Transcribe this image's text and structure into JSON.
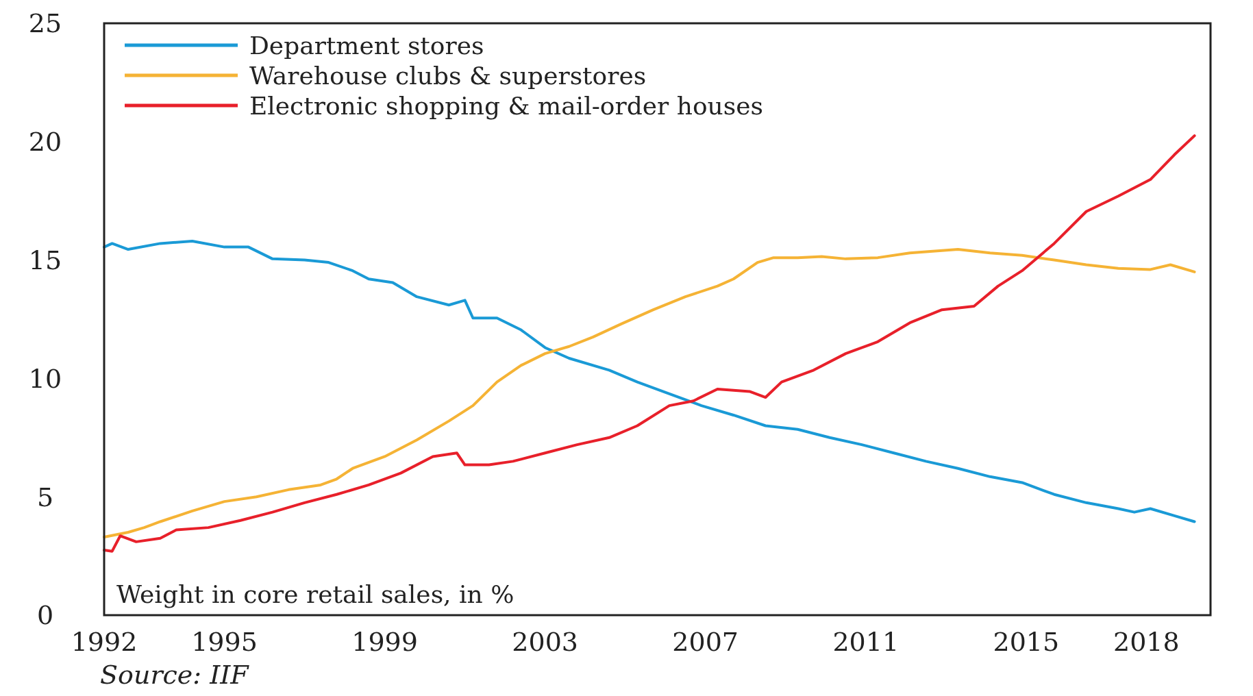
{
  "chart_data": {
    "type": "line",
    "ylabel": "Weight in core retail sales, in %",
    "annotations": [
      "Source: IIF"
    ],
    "xlim": [
      1992,
      2019.6
    ],
    "xticks": [
      1992,
      1995,
      1999,
      2003,
      2007,
      2011,
      2015,
      2018
    ],
    "ylim": [
      0,
      25
    ],
    "yticks": [
      0,
      5,
      10,
      15,
      20,
      25
    ],
    "grid": false,
    "legend": "top left",
    "marker": "none",
    "line_style": "solid",
    "series": [
      {
        "name": "Department stores",
        "color": "#1a9ad6",
        "x": [
          1992.0,
          1992.2,
          1992.6,
          1993.4,
          1994.2,
          1995.0,
          1995.6,
          1996.2,
          1997.0,
          1997.6,
          1998.2,
          1998.6,
          1999.2,
          1999.8,
          2000.6,
          2001.0,
          2001.2,
          2001.8,
          2002.4,
          2003.0,
          2003.6,
          2004.6,
          2005.3,
          2006.1,
          2006.9,
          2007.7,
          2008.5,
          2009.3,
          2010.1,
          2010.9,
          2011.7,
          2012.5,
          2013.3,
          2014.1,
          2014.9,
          2015.7,
          2016.5,
          2017.3,
          2017.7,
          2018.1,
          2018.7,
          2019.2
        ],
        "values": [
          15.55,
          15.7,
          15.45,
          15.7,
          15.8,
          15.55,
          15.55,
          15.05,
          15.0,
          14.9,
          14.55,
          14.2,
          14.05,
          13.45,
          13.1,
          13.3,
          12.55,
          12.55,
          12.05,
          11.3,
          10.85,
          10.35,
          9.85,
          9.35,
          8.85,
          8.45,
          8.0,
          7.85,
          7.5,
          7.2,
          6.85,
          6.5,
          6.2,
          5.85,
          5.6,
          5.1,
          4.75,
          4.5,
          4.35,
          4.5,
          4.2,
          3.95
        ]
      },
      {
        "name": "Warehouse clubs & superstores",
        "color": "#f5b335",
        "x": [
          1992.0,
          1992.6,
          1993.0,
          1993.4,
          1994.2,
          1995.0,
          1995.8,
          1996.6,
          1997.4,
          1997.8,
          1998.2,
          1999.0,
          1999.8,
          2000.6,
          2001.2,
          2001.8,
          2002.4,
          2003.0,
          2003.6,
          2004.2,
          2004.9,
          2005.7,
          2006.5,
          2007.3,
          2007.7,
          2008.3,
          2008.7,
          2009.3,
          2009.9,
          2010.5,
          2011.3,
          2012.1,
          2012.9,
          2013.3,
          2014.1,
          2014.9,
          2015.7,
          2016.5,
          2017.3,
          2018.1,
          2018.6,
          2019.2
        ],
        "values": [
          3.3,
          3.5,
          3.7,
          3.95,
          4.4,
          4.8,
          5.0,
          5.3,
          5.5,
          5.75,
          6.2,
          6.7,
          7.4,
          8.2,
          8.85,
          9.85,
          10.55,
          11.05,
          11.35,
          11.75,
          12.3,
          12.9,
          13.45,
          13.9,
          14.2,
          14.9,
          15.1,
          15.1,
          15.15,
          15.05,
          15.1,
          15.3,
          15.4,
          15.45,
          15.3,
          15.2,
          15.0,
          14.8,
          14.65,
          14.6,
          14.8,
          14.5
        ]
      },
      {
        "name": "Electronic shopping & mail-order houses",
        "color": "#e8202a",
        "x": [
          1992.0,
          1992.2,
          1992.4,
          1992.8,
          1993.4,
          1993.8,
          1994.6,
          1995.4,
          1996.2,
          1997.0,
          1997.8,
          1998.6,
          1999.4,
          2000.2,
          2000.8,
          2001.0,
          2001.6,
          2002.2,
          2003.0,
          2003.8,
          2004.6,
          2005.3,
          2006.1,
          2006.7,
          2007.3,
          2008.1,
          2008.5,
          2008.9,
          2009.7,
          2010.5,
          2011.3,
          2012.1,
          2012.9,
          2013.7,
          2014.3,
          2014.9,
          2015.7,
          2016.5,
          2017.3,
          2018.1,
          2018.7,
          2019.2
        ],
        "values": [
          2.75,
          2.7,
          3.35,
          3.1,
          3.25,
          3.6,
          3.7,
          4.0,
          4.35,
          4.75,
          5.1,
          5.5,
          6.0,
          6.7,
          6.85,
          6.35,
          6.35,
          6.5,
          6.85,
          7.2,
          7.5,
          8.0,
          8.85,
          9.05,
          9.55,
          9.45,
          9.2,
          9.85,
          10.35,
          11.05,
          11.55,
          12.35,
          12.9,
          13.05,
          13.9,
          14.55,
          15.7,
          17.05,
          17.7,
          18.4,
          19.45,
          20.25
        ]
      }
    ]
  }
}
